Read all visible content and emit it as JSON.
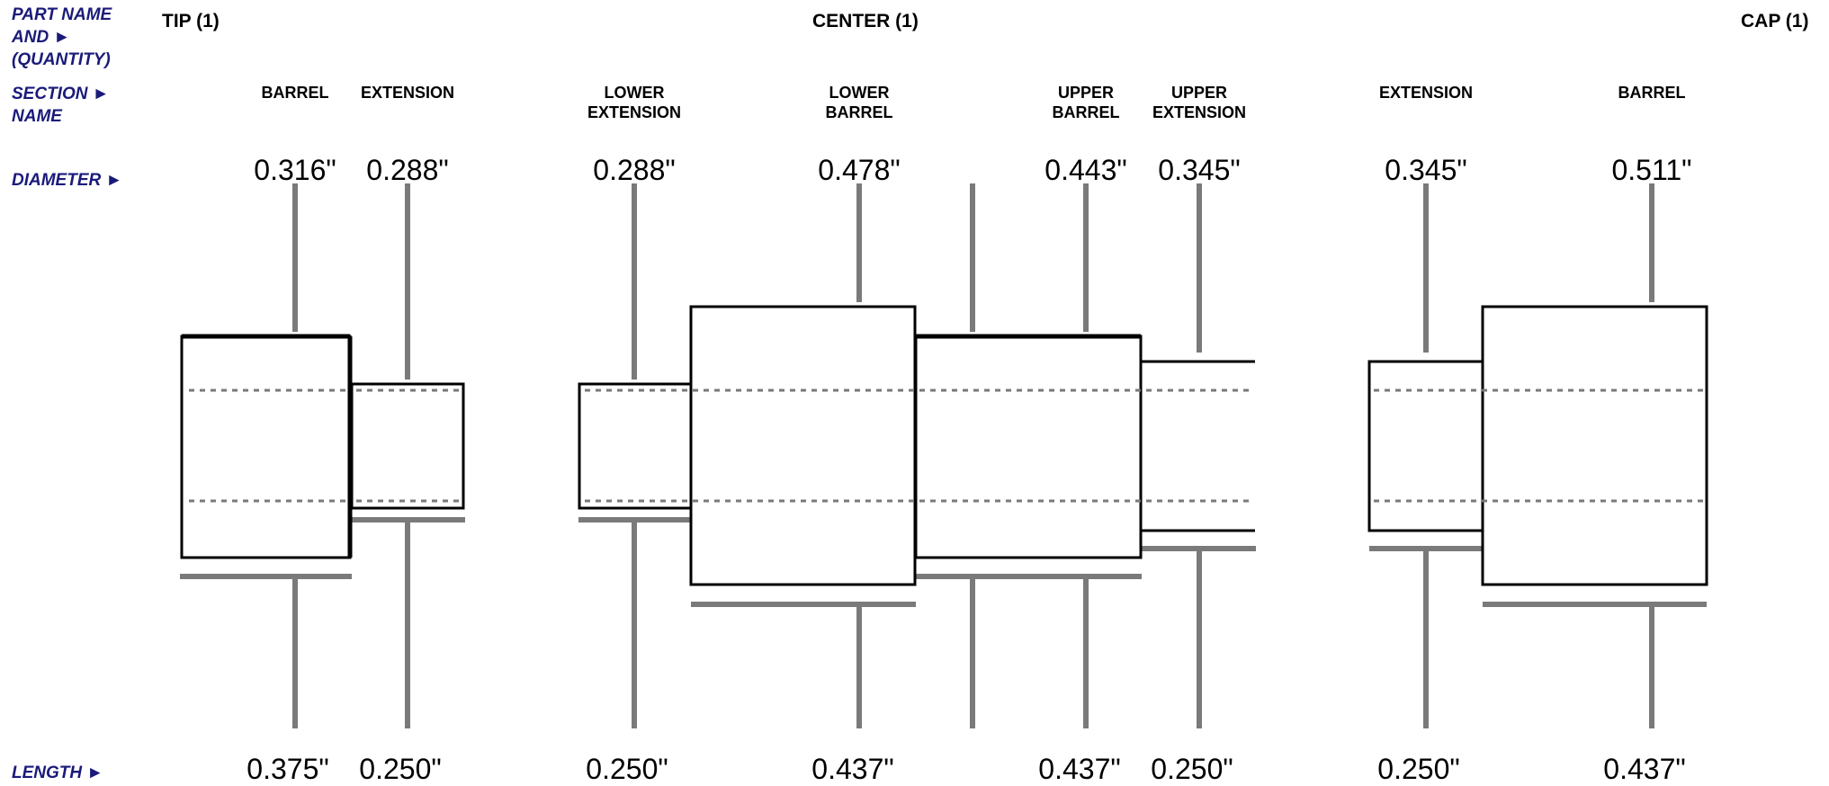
{
  "row_labels": {
    "part": "PART  NAME\nAND     ►\n(QUANTITY)",
    "section": "SECTION  ►\nNAME",
    "diameter": "DIAMETER ►",
    "length": "LENGTH ►"
  },
  "parts": [
    {
      "name": "TIP (1)"
    },
    {
      "name": "CENTER (1)"
    },
    {
      "name": "CAP (1)"
    }
  ],
  "sections": [
    {
      "part": "TIP",
      "name": "BARREL",
      "diameter": "0.316\"",
      "length": "0.375\""
    },
    {
      "part": "TIP",
      "name": "EXTENSION",
      "diameter": "0.288\"",
      "length": "0.250\""
    },
    {
      "part": "CENTER",
      "name": "LOWER\nEXTENSION",
      "diameter": "0.288\"",
      "length": "0.250\""
    },
    {
      "part": "CENTER",
      "name": "LOWER\nBARREL",
      "diameter": "0.478\"",
      "length": "0.437\""
    },
    {
      "part": "CENTER",
      "name": "UPPER\nBARREL",
      "diameter": "0.443\"",
      "length": "0.437\""
    },
    {
      "part": "CENTER",
      "name": "UPPER\nEXTENSION",
      "diameter": "0.345\"",
      "length": "0.250\""
    },
    {
      "part": "CAP",
      "name": "EXTENSION",
      "diameter": "0.345\"",
      "length": "0.250\""
    },
    {
      "part": "CAP",
      "name": "BARREL",
      "diameter": "0.511\"",
      "length": "0.437\""
    }
  ],
  "colors": {
    "dimension_line": "#7a7a7a",
    "outline": "#000000",
    "label": "#1a1a7a"
  }
}
